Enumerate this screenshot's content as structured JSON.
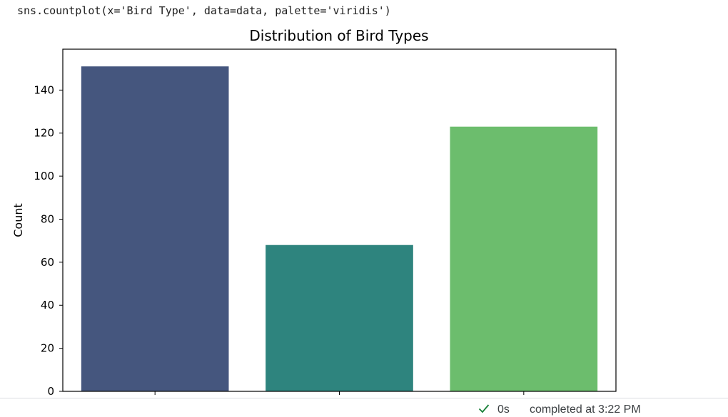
{
  "cell": {
    "code": "sns.countplot(x='Bird Type', data=data, palette='viridis')"
  },
  "chart_data": {
    "type": "bar",
    "title": "Distribution of Bird Types",
    "xlabel": "",
    "ylabel": "Count",
    "categories": [
      "",
      "",
      ""
    ],
    "values": [
      151,
      68,
      123
    ],
    "colors": [
      "#45567e",
      "#2e847e",
      "#6cbd6d"
    ],
    "ylim": [
      0,
      159
    ],
    "yticks": [
      0,
      20,
      40,
      60,
      80,
      100,
      120,
      140
    ],
    "grid": false
  },
  "status": {
    "check_icon": "check-icon",
    "duration": "0s",
    "completed_text": "completed at 3:22 PM",
    "check_color": "#188038"
  }
}
